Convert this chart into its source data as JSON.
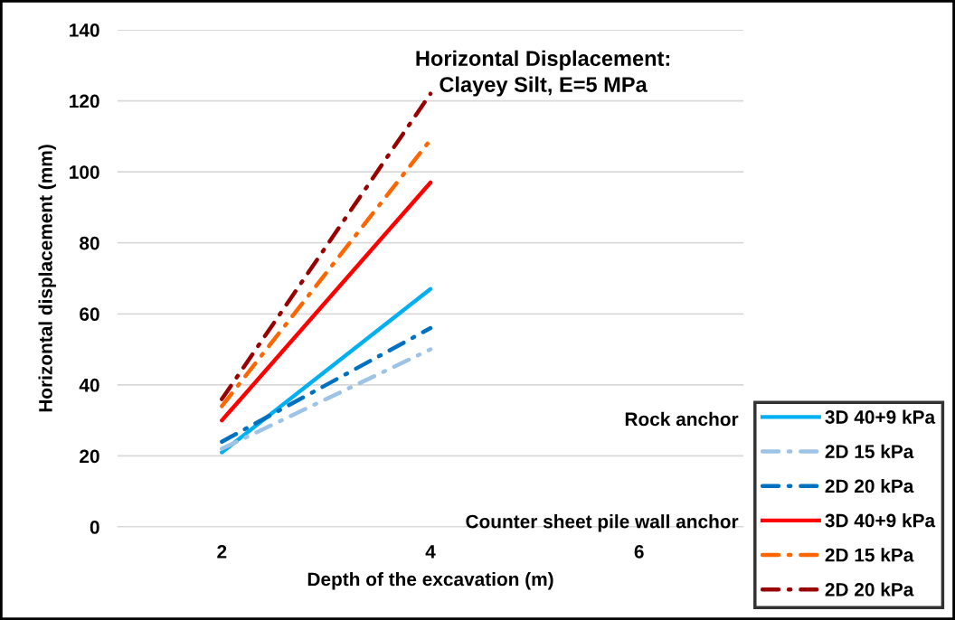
{
  "chart_data": {
    "type": "line",
    "title": "Horizontal Displacement:\nClayey Silt, E=5 MPa",
    "xlabel": "Depth of the excavation (m)",
    "ylabel": "Horizontal displacement (mm)",
    "x": [
      2,
      4
    ],
    "xlim": [
      1,
      7
    ],
    "xticks": [
      2,
      4,
      6
    ],
    "ylim": [
      0,
      140
    ],
    "yticks": [
      0,
      20,
      40,
      60,
      80,
      100,
      120,
      140
    ],
    "grid": "y",
    "legend": "bottom right",
    "marker": "none",
    "series": [
      {
        "name": "3D 40+9 kPa",
        "color": "#00b0f0",
        "line_style": "solid",
        "values": [
          21,
          67
        ]
      },
      {
        "name": "2D 15 kPa",
        "color": "#9dc3e6",
        "line_style": "dashdot",
        "values": [
          22,
          50
        ]
      },
      {
        "name": "2D 20 kPa",
        "color": "#0070c0",
        "line_style": "dashdot",
        "values": [
          24,
          56
        ]
      },
      {
        "name": "3D 40+9 kPa",
        "color": "#ff0000",
        "line_style": "solid",
        "values": [
          30,
          97
        ]
      },
      {
        "name": "2D 15 kPa",
        "color": "#ff6600",
        "line_style": "dashdot",
        "values": [
          34,
          109
        ]
      },
      {
        "name": "2D 20 kPa",
        "color": "#990000",
        "line_style": "dashdot",
        "values": [
          36,
          122
        ]
      }
    ],
    "annotations": [
      "Rock anchor",
      "Counter sheet pile wall anchor"
    ]
  }
}
